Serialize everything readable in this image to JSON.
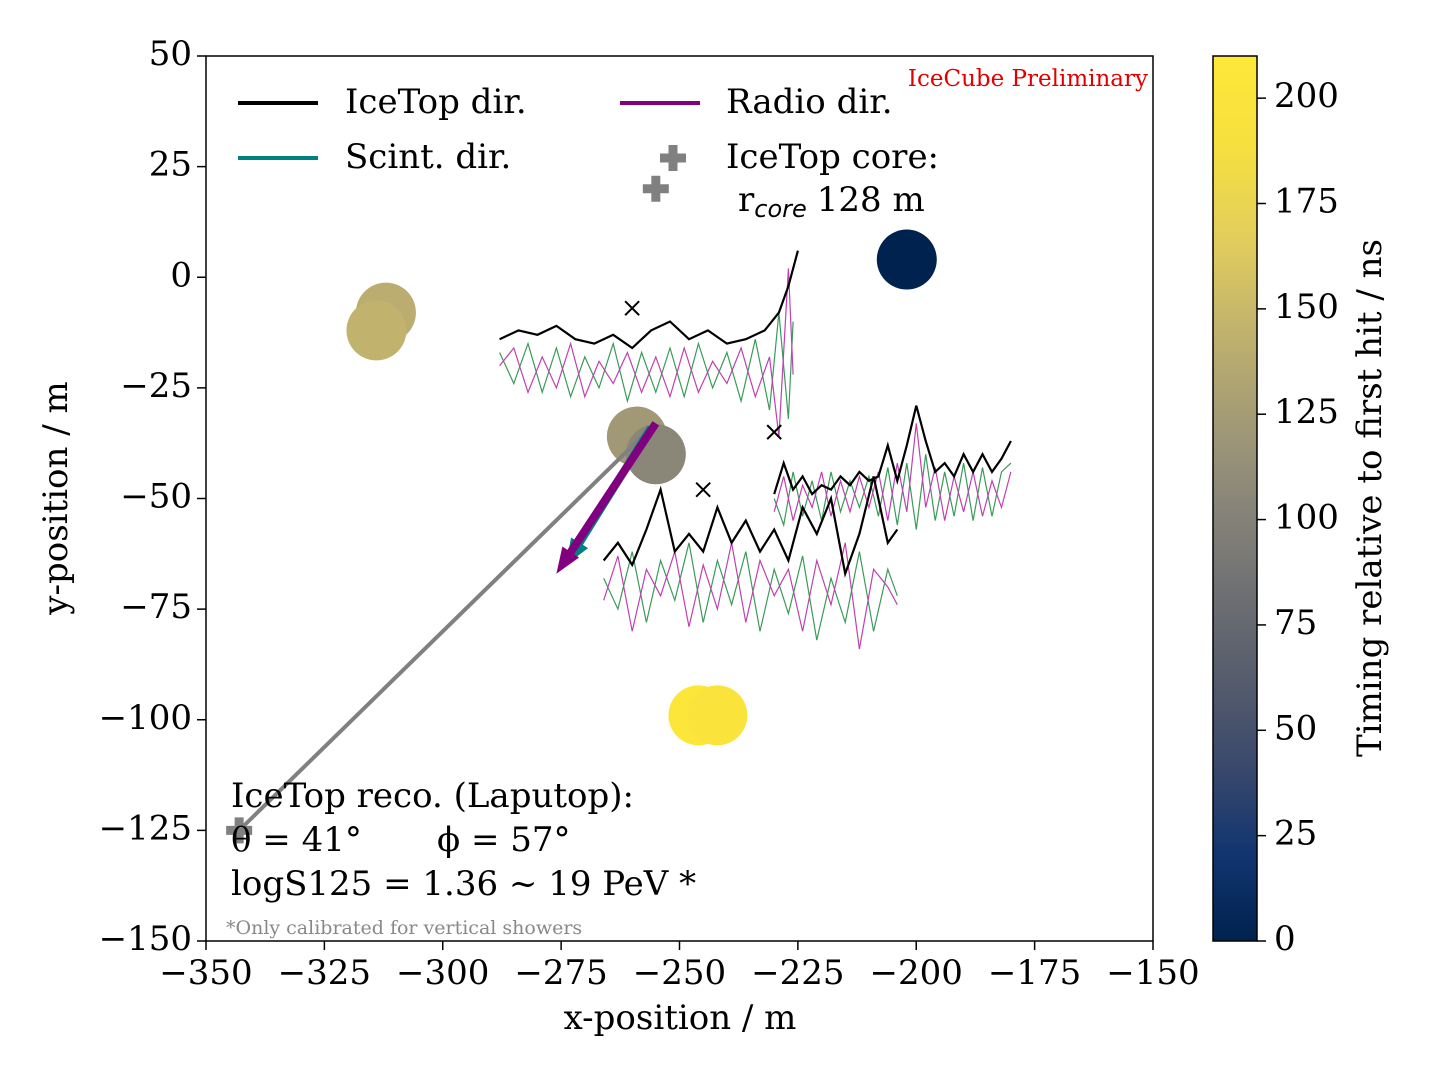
{
  "chart_data": {
    "type": "scatter",
    "xlabel": "x-position / m",
    "ylabel": "y-position / m",
    "xlim": [
      -350,
      -150
    ],
    "ylim": [
      -150,
      50
    ],
    "xticks": [
      {
        "value": -350,
        "label": "−350"
      },
      {
        "value": -325,
        "label": "−325"
      },
      {
        "value": -300,
        "label": "−300"
      },
      {
        "value": -275,
        "label": "−275"
      },
      {
        "value": -250,
        "label": "−250"
      },
      {
        "value": -225,
        "label": "−225"
      },
      {
        "value": -200,
        "label": "−200"
      },
      {
        "value": -175,
        "label": "−175"
      },
      {
        "value": -150,
        "label": "−150"
      }
    ],
    "yticks": [
      {
        "value": 50,
        "label": "50"
      },
      {
        "value": 25,
        "label": "25"
      },
      {
        "value": 0,
        "label": "0"
      },
      {
        "value": -25,
        "label": "−25"
      },
      {
        "value": -50,
        "label": "−50"
      },
      {
        "value": -75,
        "label": "−75"
      },
      {
        "value": -100,
        "label": "−100"
      },
      {
        "value": -125,
        "label": "−125"
      },
      {
        "value": -150,
        "label": "−150"
      }
    ],
    "colorbar": {
      "label": "Timing relative to first hit / ns",
      "colormap": "cividis",
      "clim": [
        0,
        210
      ],
      "ticks": [
        0,
        25,
        50,
        75,
        100,
        125,
        150,
        175,
        200
      ]
    },
    "stations": {
      "x": [
        -312,
        -314,
        -259,
        -255,
        -202,
        -246,
        -242
      ],
      "y": [
        -8,
        -12,
        -36,
        -40,
        4,
        -99,
        -99
      ],
      "timing": [
        140,
        145,
        122,
        105,
        0,
        205,
        200
      ]
    },
    "antennas": {
      "x": [
        -260,
        -230,
        -245
      ],
      "y": [
        -7,
        -35,
        -48
      ]
    },
    "cores": {
      "x": [
        -255,
        -343
      ],
      "y": [
        20,
        -125
      ],
      "color": "#808080"
    },
    "shower_axis": {
      "x": [
        -343,
        -256
      ],
      "y": [
        -125,
        -34
      ],
      "color": "#808080"
    },
    "arrows": [
      {
        "name": "Scint. dir.",
        "color": "#008080",
        "x": [
          -256,
          -274
        ],
        "y": [
          -34,
          -65
        ]
      },
      {
        "name": "Radio dir.",
        "color": "#800080",
        "x": [
          -255,
          -276
        ],
        "y": [
          -33,
          -67
        ]
      }
    ],
    "legend": {
      "icetop_dir": {
        "name": "IceTop dir.",
        "color": "#000000"
      },
      "core": {
        "title": "IceTop core:",
        "r": "r",
        "sub": "core",
        "value": "128 m"
      }
    },
    "traces": [
      {
        "color": "#000000",
        "x": [
          -288,
          -284,
          -280,
          -276,
          -272,
          -268,
          -264,
          -260,
          -256,
          -252,
          -248,
          -244,
          -240,
          -236,
          -232,
          -229,
          -227,
          -225
        ],
        "y": [
          -14,
          -12,
          -13,
          -11,
          -14,
          -15,
          -13,
          -16,
          -12,
          -10,
          -14,
          -12,
          -15,
          -14,
          -12,
          -8,
          -2,
          6
        ]
      },
      {
        "color": "#3a9a5a",
        "x": [
          -288,
          -285,
          -282,
          -279,
          -276,
          -273,
          -270,
          -267,
          -264,
          -261,
          -258,
          -255,
          -252,
          -249,
          -246,
          -243,
          -240,
          -237,
          -234,
          -231,
          -229,
          -227,
          -226
        ],
        "y": [
          -17,
          -24,
          -15,
          -26,
          -16,
          -27,
          -18,
          -25,
          -15,
          -28,
          -17,
          -26,
          -16,
          -27,
          -15,
          -25,
          -17,
          -28,
          -14,
          -30,
          -8,
          -32,
          -10
        ]
      },
      {
        "color": "#c040b0",
        "x": [
          -288,
          -285,
          -282,
          -279,
          -276,
          -273,
          -270,
          -267,
          -264,
          -261,
          -258,
          -255,
          -252,
          -249,
          -246,
          -243,
          -240,
          -237,
          -234,
          -231,
          -229,
          -227,
          -226
        ],
        "y": [
          -20,
          -16,
          -26,
          -18,
          -25,
          -15,
          -27,
          -19,
          -24,
          -17,
          -26,
          -18,
          -27,
          -16,
          -26,
          -19,
          -24,
          -16,
          -27,
          -18,
          -36,
          2,
          -22
        ]
      },
      {
        "color": "#000000",
        "x": [
          -230,
          -228,
          -226,
          -224,
          -222,
          -220,
          -218,
          -216,
          -214,
          -212,
          -210,
          -208,
          -206,
          -204,
          -202,
          -200,
          -198,
          -196,
          -194,
          -192,
          -190,
          -188,
          -186,
          -184,
          -182,
          -180
        ],
        "y": [
          -49,
          -42,
          -48,
          -45,
          -49,
          -47,
          -48,
          -45,
          -47,
          -44,
          -46,
          -45,
          -38,
          -46,
          -38,
          -29,
          -37,
          -44,
          -42,
          -45,
          -40,
          -44,
          -40,
          -44,
          -41,
          -37
        ]
      },
      {
        "color": "#3a9a5a",
        "x": [
          -230,
          -228,
          -226,
          -224,
          -222,
          -220,
          -218,
          -216,
          -214,
          -212,
          -210,
          -208,
          -206,
          -204,
          -202,
          -200,
          -198,
          -196,
          -194,
          -192,
          -190,
          -188,
          -186,
          -184,
          -182,
          -180
        ],
        "y": [
          -50,
          -56,
          -44,
          -54,
          -46,
          -55,
          -44,
          -53,
          -46,
          -52,
          -45,
          -54,
          -43,
          -56,
          -42,
          -57,
          -40,
          -55,
          -44,
          -54,
          -42,
          -55,
          -43,
          -54,
          -44,
          -42
        ]
      },
      {
        "color": "#c040b0",
        "x": [
          -230,
          -228,
          -226,
          -224,
          -222,
          -220,
          -218,
          -216,
          -214,
          -212,
          -210,
          -208,
          -206,
          -204,
          -202,
          -200,
          -198,
          -196,
          -194,
          -192,
          -190,
          -188,
          -186,
          -184,
          -182,
          -180
        ],
        "y": [
          -53,
          -45,
          -55,
          -47,
          -52,
          -44,
          -54,
          -46,
          -53,
          -45,
          -52,
          -44,
          -55,
          -42,
          -53,
          -33,
          -52,
          -43,
          -55,
          -45,
          -53,
          -44,
          -54,
          -46,
          -52,
          -44
        ]
      },
      {
        "color": "#000000",
        "x": [
          -266,
          -263,
          -260,
          -257,
          -254,
          -251,
          -248,
          -245,
          -242,
          -239,
          -236,
          -233,
          -230,
          -227,
          -224,
          -221,
          -218,
          -215,
          -212,
          -209,
          -206,
          -204
        ],
        "y": [
          -64,
          -60,
          -65,
          -57,
          -48,
          -62,
          -58,
          -62,
          -52,
          -60,
          -55,
          -62,
          -57,
          -64,
          -52,
          -58,
          -50,
          -67,
          -58,
          -45,
          -60,
          -57
        ]
      },
      {
        "color": "#3a9a5a",
        "x": [
          -266,
          -263,
          -260,
          -257,
          -254,
          -251,
          -248,
          -245,
          -242,
          -239,
          -236,
          -233,
          -230,
          -227,
          -224,
          -221,
          -218,
          -215,
          -212,
          -209,
          -206,
          -204
        ],
        "y": [
          -68,
          -75,
          -62,
          -78,
          -64,
          -73,
          -60,
          -78,
          -64,
          -74,
          -62,
          -80,
          -66,
          -76,
          -63,
          -82,
          -68,
          -78,
          -62,
          -80,
          -66,
          -72
        ]
      },
      {
        "color": "#c040b0",
        "x": [
          -266,
          -263,
          -260,
          -257,
          -254,
          -251,
          -248,
          -245,
          -242,
          -239,
          -236,
          -233,
          -230,
          -227,
          -224,
          -221,
          -218,
          -215,
          -212,
          -209,
          -206,
          -204
        ],
        "y": [
          -73,
          -63,
          -80,
          -66,
          -72,
          -62,
          -79,
          -65,
          -75,
          -60,
          -78,
          -64,
          -72,
          -66,
          -80,
          -64,
          -74,
          -60,
          -84,
          -66,
          -70,
          -74
        ]
      }
    ],
    "annotations": {
      "preliminary": "IceCube Preliminary",
      "reco_title": "IceTop reco. (Laputop):",
      "theta": "θ = 41°",
      "phi": "ϕ = 57°",
      "energy": "logS125 = 1.36  ~  19 PeV *",
      "footnote": "*Only calibrated for vertical showers"
    }
  }
}
